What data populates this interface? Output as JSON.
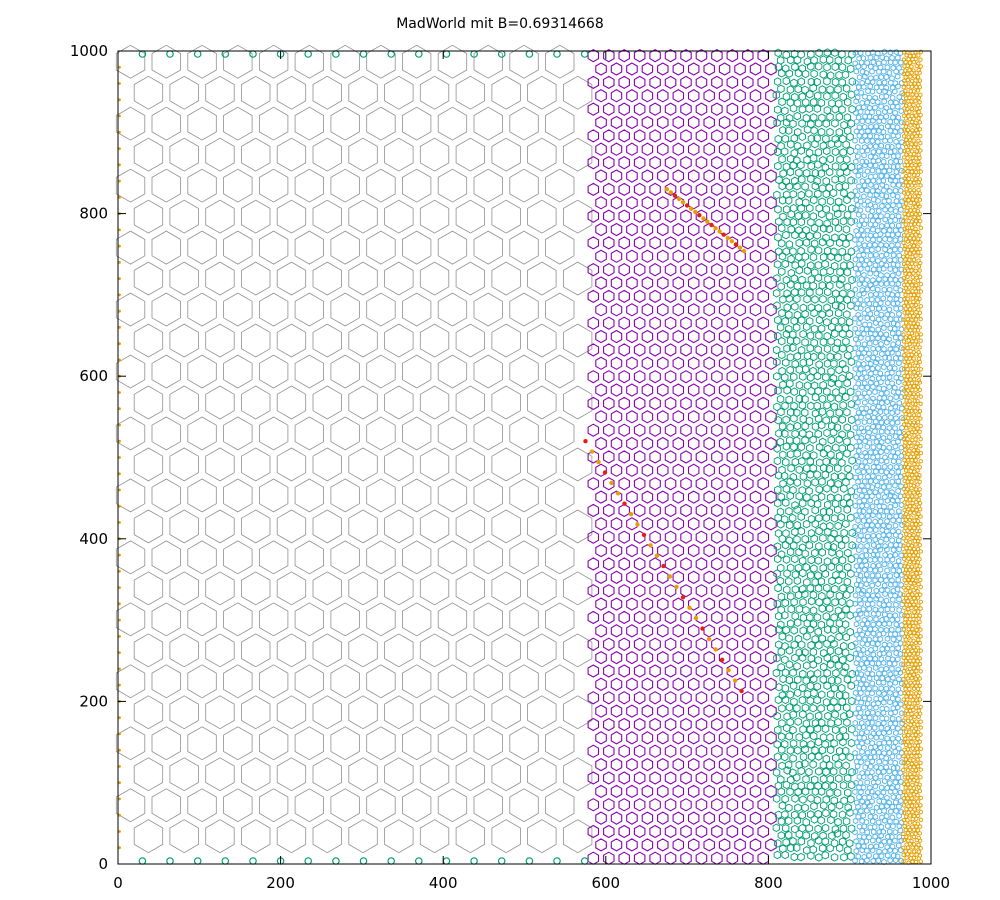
{
  "chart_data": {
    "type": "scatter",
    "title": "MadWorld mit B=0.69314668",
    "xlabel": "",
    "ylabel": "",
    "xlim": [
      0,
      1000
    ],
    "ylim": [
      0,
      1000
    ],
    "grid": false,
    "legend": "none",
    "x_ticks": [
      "0",
      "200",
      "400",
      "600",
      "800",
      "1000"
    ],
    "y_ticks": [
      "0",
      "200",
      "400",
      "600",
      "800",
      "1000"
    ],
    "x_tick_values": [
      0,
      200,
      400,
      600,
      800,
      1000
    ],
    "y_tick_values": [
      0,
      200,
      400,
      600,
      800,
      1000
    ],
    "regions": [
      {
        "color": "#909090",
        "x_start": 0,
        "x_end": 578,
        "cell_size": 44,
        "style": "hex-lattice"
      },
      {
        "color": "#8b00b5",
        "x_start": 578,
        "x_end": 808,
        "cell_size": 19,
        "style": "ring-lattice"
      },
      {
        "color": "#009e73",
        "x_start": 808,
        "x_end": 905,
        "cell_size": 10,
        "style": "dense-mesh"
      },
      {
        "color": "#56b4e9",
        "x_start": 905,
        "x_end": 965,
        "cell_size": 7,
        "style": "dense-mesh"
      },
      {
        "color": "#e69f00",
        "x_start": 965,
        "x_end": 990,
        "cell_size": 5,
        "style": "dense-mesh"
      }
    ],
    "accent_colors": {
      "orange": "#e69f00",
      "red": "#e51e10",
      "teal": "#009e73"
    }
  }
}
